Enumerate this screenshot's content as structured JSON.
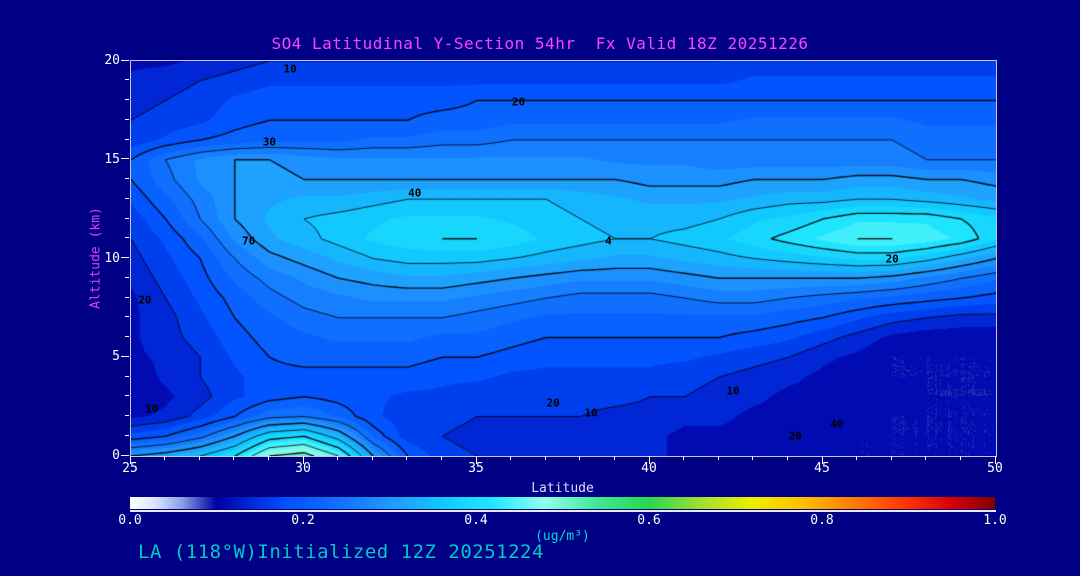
{
  "title": {
    "text": "SO4 Latitudinal Y-Section 54hr  Fx Valid 18Z 20251226"
  },
  "footer": {
    "text": "LA (118°W)Initialized 12Z 20251224"
  },
  "colors": {
    "background": "#000085",
    "title": "#ff44ff",
    "tick_labels": "#ffffff",
    "x_axis_label": "#e0d8ff",
    "y_axis_label": "#e040e0",
    "colorbar_unit": "#00d8d8",
    "footer": "#00c8c8",
    "plot_border": "#c8c8dc",
    "contour_lines": "#000000"
  },
  "axes": {
    "x": {
      "label": "Latitude",
      "min": 25,
      "max": 50,
      "major_ticks": [
        25,
        30,
        35,
        40,
        45,
        50
      ],
      "minor_step": 1
    },
    "y": {
      "label": "Altitude (km)",
      "min": 0,
      "max": 20,
      "major_ticks": [
        0,
        5,
        10,
        15,
        20
      ],
      "minor_step": 1
    }
  },
  "colorbar": {
    "label": "(ug/m³)",
    "ticks": [
      "0.0",
      "0.2",
      "0.4",
      "0.6",
      "0.8",
      "1.0"
    ],
    "min": 0.0,
    "max": 1.0,
    "stops": [
      [
        0.0,
        "#ffffff"
      ],
      [
        0.03,
        "#d8e4fa"
      ],
      [
        0.06,
        "#8aa0e8"
      ],
      [
        0.1,
        "#0000a0"
      ],
      [
        0.14,
        "#0028d8"
      ],
      [
        0.18,
        "#0050ff"
      ],
      [
        0.24,
        "#1070ff"
      ],
      [
        0.3,
        "#2098ff"
      ],
      [
        0.36,
        "#10c8ff"
      ],
      [
        0.42,
        "#20e8ff"
      ],
      [
        0.48,
        "#90ffee"
      ],
      [
        0.54,
        "#40e890"
      ],
      [
        0.6,
        "#28d850"
      ],
      [
        0.66,
        "#a0e030"
      ],
      [
        0.72,
        "#f0ee00"
      ],
      [
        0.78,
        "#ffbc00"
      ],
      [
        0.84,
        "#ff7800"
      ],
      [
        0.9,
        "#ff3000"
      ],
      [
        0.95,
        "#d80000"
      ],
      [
        1.0,
        "#800000"
      ]
    ]
  },
  "chart_data": {
    "type": "heatmap",
    "subtype": "filled-contour-cross-section",
    "title": "SO4 Latitudinal Y-Section 54hr  Fx Valid 18Z 20251226",
    "xlabel": "Latitude",
    "ylabel": "Altitude (km)",
    "units": "ug/m3",
    "xlim": [
      25,
      50
    ],
    "ylim": [
      0,
      20
    ],
    "x": [
      25,
      26,
      27,
      28,
      29,
      30,
      31,
      32,
      33,
      34,
      35,
      36,
      37,
      38,
      39,
      40,
      41,
      42,
      43,
      44,
      45,
      46,
      47,
      48,
      49,
      50
    ],
    "y": [
      0,
      1,
      2,
      3,
      4,
      5,
      6,
      7,
      8,
      9,
      10,
      11,
      12,
      13,
      14,
      15,
      16,
      17,
      18,
      19,
      20
    ],
    "values": [
      [
        0.3,
        0.32,
        0.35,
        0.4,
        0.5,
        0.52,
        0.45,
        0.3,
        0.2,
        0.16,
        0.15,
        0.14,
        0.14,
        0.14,
        0.13,
        0.13,
        0.12,
        0.12,
        0.11,
        0.11,
        0.1,
        0.1,
        0.1,
        0.1,
        0.1,
        0.1
      ],
      [
        0.18,
        0.2,
        0.24,
        0.3,
        0.38,
        0.4,
        0.33,
        0.22,
        0.16,
        0.15,
        0.14,
        0.14,
        0.14,
        0.14,
        0.13,
        0.13,
        0.12,
        0.12,
        0.12,
        0.11,
        0.11,
        0.1,
        0.1,
        0.1,
        0.1,
        0.1
      ],
      [
        0.12,
        0.13,
        0.16,
        0.2,
        0.24,
        0.25,
        0.22,
        0.18,
        0.16,
        0.16,
        0.15,
        0.15,
        0.15,
        0.15,
        0.14,
        0.14,
        0.13,
        0.13,
        0.12,
        0.12,
        0.11,
        0.11,
        0.1,
        0.1,
        0.1,
        0.1
      ],
      [
        0.11,
        0.12,
        0.14,
        0.17,
        0.19,
        0.2,
        0.19,
        0.18,
        0.17,
        0.17,
        0.16,
        0.16,
        0.16,
        0.16,
        0.16,
        0.15,
        0.15,
        0.14,
        0.13,
        0.12,
        0.12,
        0.11,
        0.11,
        0.1,
        0.1,
        0.1
      ],
      [
        0.11,
        0.13,
        0.15,
        0.17,
        0.19,
        0.19,
        0.19,
        0.19,
        0.19,
        0.18,
        0.18,
        0.17,
        0.17,
        0.17,
        0.17,
        0.17,
        0.16,
        0.15,
        0.14,
        0.13,
        0.12,
        0.11,
        0.1,
        0.1,
        0.1,
        0.1
      ],
      [
        0.12,
        0.13,
        0.15,
        0.18,
        0.2,
        0.21,
        0.21,
        0.21,
        0.21,
        0.2,
        0.2,
        0.19,
        0.18,
        0.18,
        0.18,
        0.18,
        0.18,
        0.17,
        0.16,
        0.15,
        0.13,
        0.12,
        0.1,
        0.1,
        0.1,
        0.1
      ],
      [
        0.12,
        0.14,
        0.16,
        0.19,
        0.21,
        0.22,
        0.23,
        0.23,
        0.23,
        0.22,
        0.22,
        0.21,
        0.2,
        0.2,
        0.2,
        0.2,
        0.2,
        0.2,
        0.19,
        0.18,
        0.16,
        0.14,
        0.12,
        0.11,
        0.11,
        0.11
      ],
      [
        0.12,
        0.14,
        0.17,
        0.2,
        0.22,
        0.24,
        0.25,
        0.25,
        0.25,
        0.25,
        0.24,
        0.23,
        0.22,
        0.22,
        0.22,
        0.22,
        0.22,
        0.22,
        0.22,
        0.21,
        0.2,
        0.18,
        0.16,
        0.15,
        0.14,
        0.14
      ],
      [
        0.12,
        0.15,
        0.18,
        0.21,
        0.24,
        0.26,
        0.27,
        0.28,
        0.28,
        0.28,
        0.27,
        0.26,
        0.25,
        0.24,
        0.24,
        0.24,
        0.25,
        0.26,
        0.26,
        0.25,
        0.24,
        0.23,
        0.22,
        0.21,
        0.2,
        0.19
      ],
      [
        0.13,
        0.16,
        0.19,
        0.23,
        0.26,
        0.28,
        0.3,
        0.31,
        0.32,
        0.32,
        0.31,
        0.3,
        0.29,
        0.28,
        0.28,
        0.28,
        0.29,
        0.3,
        0.3,
        0.3,
        0.3,
        0.3,
        0.29,
        0.27,
        0.25,
        0.23
      ],
      [
        0.14,
        0.17,
        0.2,
        0.25,
        0.29,
        0.31,
        0.33,
        0.35,
        0.36,
        0.36,
        0.36,
        0.35,
        0.34,
        0.33,
        0.32,
        0.32,
        0.33,
        0.34,
        0.35,
        0.36,
        0.37,
        0.38,
        0.38,
        0.36,
        0.33,
        0.3
      ],
      [
        0.15,
        0.18,
        0.22,
        0.28,
        0.32,
        0.34,
        0.36,
        0.38,
        0.39,
        0.4,
        0.4,
        0.39,
        0.37,
        0.36,
        0.35,
        0.35,
        0.36,
        0.37,
        0.39,
        0.41,
        0.43,
        0.45,
        0.45,
        0.44,
        0.42,
        0.38
      ],
      [
        0.16,
        0.2,
        0.25,
        0.3,
        0.33,
        0.35,
        0.36,
        0.37,
        0.38,
        0.38,
        0.38,
        0.37,
        0.36,
        0.35,
        0.34,
        0.34,
        0.34,
        0.35,
        0.37,
        0.38,
        0.4,
        0.42,
        0.42,
        0.42,
        0.4,
        0.38
      ],
      [
        0.18,
        0.22,
        0.26,
        0.3,
        0.32,
        0.33,
        0.33,
        0.34,
        0.35,
        0.35,
        0.35,
        0.35,
        0.35,
        0.34,
        0.33,
        0.32,
        0.32,
        0.32,
        0.33,
        0.34,
        0.34,
        0.35,
        0.35,
        0.34,
        0.33,
        0.32
      ],
      [
        0.2,
        0.24,
        0.28,
        0.3,
        0.31,
        0.3,
        0.3,
        0.3,
        0.3,
        0.3,
        0.3,
        0.3,
        0.3,
        0.3,
        0.3,
        0.29,
        0.29,
        0.29,
        0.3,
        0.3,
        0.3,
        0.31,
        0.31,
        0.3,
        0.3,
        0.29
      ],
      [
        0.2,
        0.25,
        0.28,
        0.3,
        0.3,
        0.29,
        0.28,
        0.28,
        0.28,
        0.28,
        0.28,
        0.28,
        0.28,
        0.28,
        0.27,
        0.27,
        0.27,
        0.26,
        0.26,
        0.26,
        0.26,
        0.26,
        0.26,
        0.25,
        0.25,
        0.25
      ],
      [
        0.16,
        0.18,
        0.2,
        0.21,
        0.22,
        0.22,
        0.22,
        0.23,
        0.23,
        0.24,
        0.24,
        0.25,
        0.25,
        0.25,
        0.25,
        0.25,
        0.25,
        0.25,
        0.25,
        0.25,
        0.25,
        0.25,
        0.25,
        0.24,
        0.24,
        0.24
      ],
      [
        0.15,
        0.16,
        0.17,
        0.19,
        0.2,
        0.2,
        0.2,
        0.2,
        0.2,
        0.21,
        0.21,
        0.22,
        0.22,
        0.22,
        0.22,
        0.22,
        0.22,
        0.22,
        0.23,
        0.23,
        0.23,
        0.23,
        0.23,
        0.22,
        0.22,
        0.22
      ],
      [
        0.14,
        0.15,
        0.16,
        0.18,
        0.19,
        0.19,
        0.19,
        0.19,
        0.19,
        0.19,
        0.2,
        0.2,
        0.2,
        0.2,
        0.2,
        0.2,
        0.2,
        0.2,
        0.2,
        0.2,
        0.2,
        0.2,
        0.2,
        0.2,
        0.2,
        0.2
      ],
      [
        0.13,
        0.14,
        0.15,
        0.16,
        0.17,
        0.17,
        0.17,
        0.17,
        0.17,
        0.17,
        0.17,
        0.17,
        0.17,
        0.17,
        0.17,
        0.17,
        0.17,
        0.17,
        0.18,
        0.18,
        0.18,
        0.18,
        0.18,
        0.18,
        0.18,
        0.18
      ],
      [
        0.12,
        0.12,
        0.13,
        0.14,
        0.15,
        0.15,
        0.15,
        0.15,
        0.15,
        0.15,
        0.15,
        0.15,
        0.15,
        0.15,
        0.15,
        0.15,
        0.15,
        0.15,
        0.16,
        0.16,
        0.16,
        0.16,
        0.16,
        0.16,
        0.16,
        0.16
      ]
    ],
    "contour_levels": [
      0.1,
      0.15,
      0.2,
      0.25,
      0.3,
      0.35,
      0.4,
      0.45,
      0.5
    ],
    "contour_labels": [
      {
        "text": "10",
        "lat": 29.6,
        "alt": 19.6
      },
      {
        "text": "20",
        "lat": 36.2,
        "alt": 17.9
      },
      {
        "text": "30",
        "lat": 29.0,
        "alt": 15.9
      },
      {
        "text": "40",
        "lat": 33.2,
        "alt": 13.3
      },
      {
        "text": "70",
        "lat": 28.4,
        "alt": 10.9
      },
      {
        "text": "4",
        "lat": 38.8,
        "alt": 10.9
      },
      {
        "text": "20",
        "lat": 47.0,
        "alt": 10.0
      },
      {
        "text": "20",
        "lat": 25.4,
        "alt": 7.9
      },
      {
        "text": "10",
        "lat": 25.6,
        "alt": 2.4
      },
      {
        "text": "20",
        "lat": 37.2,
        "alt": 2.7
      },
      {
        "text": "10",
        "lat": 38.3,
        "alt": 2.2
      },
      {
        "text": "10",
        "lat": 42.4,
        "alt": 3.3
      },
      {
        "text": "40",
        "lat": 45.4,
        "alt": 1.6
      },
      {
        "text": "20",
        "lat": 44.2,
        "alt": 1.0
      }
    ]
  }
}
